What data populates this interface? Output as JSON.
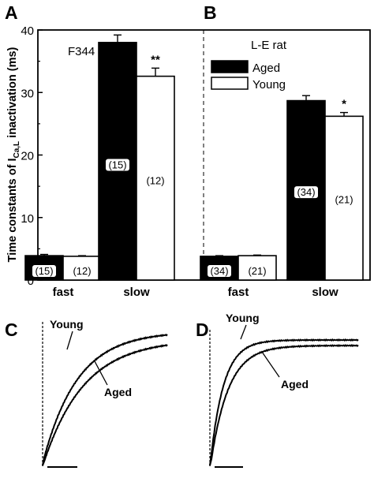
{
  "panels": {
    "a": {
      "letter": "A",
      "strain": "F344"
    },
    "b": {
      "letter": "B",
      "strain": "L-E rat"
    },
    "c": {
      "letter": "C"
    },
    "d": {
      "letter": "D"
    }
  },
  "ylabel_parts": {
    "pre": "Time constants of I",
    "sub": "Ca,L",
    "post": " inactivation (ms)"
  },
  "legend": {
    "aged": "Aged",
    "young": "Young"
  },
  "traces": {
    "young_label": "Young",
    "aged_label": "Aged"
  },
  "chart_data": [
    {
      "type": "bar",
      "panel": "A",
      "title": "F344",
      "categories": [
        "fast",
        "slow"
      ],
      "series": [
        {
          "name": "Aged",
          "values": [
            3.9,
            38.0
          ],
          "errors": [
            0.2,
            1.2
          ],
          "n": [
            "(15)",
            "(15)"
          ],
          "color": "#000000"
        },
        {
          "name": "Young",
          "values": [
            3.8,
            32.6
          ],
          "errors": [
            0.1,
            1.3
          ],
          "n": [
            "(12)",
            "(12)"
          ],
          "color": "#ffffff"
        }
      ],
      "significance": [
        "",
        "**"
      ],
      "ylabel": "Time constants of ICa,L inactivation (ms)",
      "ylim": [
        0,
        40
      ],
      "yticks": [
        0,
        10,
        20,
        30,
        40
      ]
    },
    {
      "type": "bar",
      "panel": "B",
      "title": "L-E rat",
      "categories": [
        "fast",
        "slow"
      ],
      "series": [
        {
          "name": "Aged",
          "values": [
            3.8,
            28.7
          ],
          "errors": [
            0.1,
            0.8
          ],
          "n": [
            "(34)",
            "(34)"
          ],
          "color": "#000000"
        },
        {
          "name": "Young",
          "values": [
            3.9,
            26.2
          ],
          "errors": [
            0.1,
            0.6
          ],
          "n": [
            "(21)",
            "(21)"
          ],
          "color": "#ffffff"
        }
      ],
      "significance": [
        "",
        "*"
      ],
      "ylim": [
        0,
        40
      ],
      "legend_position": "top-right"
    }
  ]
}
